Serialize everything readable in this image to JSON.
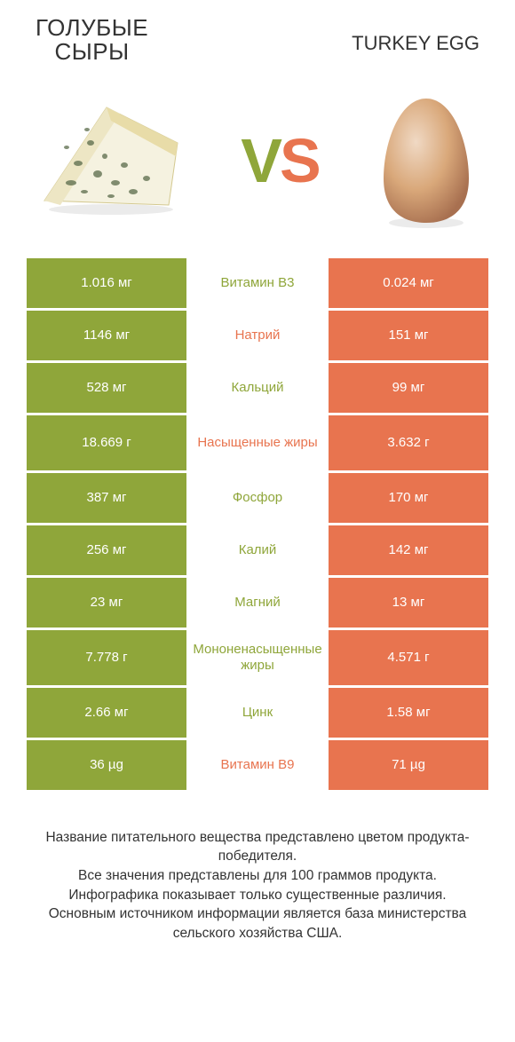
{
  "header": {
    "left_line1": "ГОЛУБЫЕ",
    "left_line2": "СЫРЫ",
    "right": "TURKEY EGG"
  },
  "vs": {
    "v": "V",
    "s": "S"
  },
  "colors": {
    "green": "#8fa63a",
    "orange": "#e8744f",
    "cheese_rind": "#e8dca8",
    "cheese_body": "#f5f2e0",
    "cheese_vein": "#5a6b4a",
    "egg_base": "#d9a87a",
    "egg_highlight": "#f0d9c4",
    "egg_shadow": "#a87050"
  },
  "rows": [
    {
      "left": "1.016 мг",
      "mid": "Витамин B3",
      "right": "0.024 мг",
      "winner": "left"
    },
    {
      "left": "1146 мг",
      "mid": "Натрий",
      "right": "151 мг",
      "winner": "right"
    },
    {
      "left": "528 мг",
      "mid": "Кальций",
      "right": "99 мг",
      "winner": "left"
    },
    {
      "left": "18.669 г",
      "mid": "Насыщенные жиры",
      "right": "3.632 г",
      "winner": "right",
      "tall": true
    },
    {
      "left": "387 мг",
      "mid": "Фосфор",
      "right": "170 мг",
      "winner": "left"
    },
    {
      "left": "256 мг",
      "mid": "Калий",
      "right": "142 мг",
      "winner": "left"
    },
    {
      "left": "23 мг",
      "mid": "Магний",
      "right": "13 мг",
      "winner": "left"
    },
    {
      "left": "7.778 г",
      "mid": "Мононенасыщенные жиры",
      "right": "4.571 г",
      "winner": "left",
      "tall": true
    },
    {
      "left": "2.66 мг",
      "mid": "Цинк",
      "right": "1.58 мг",
      "winner": "left"
    },
    {
      "left": "36 µg",
      "mid": "Витамин B9",
      "right": "71 µg",
      "winner": "right"
    }
  ],
  "footer": {
    "l1": "Название питательного вещества представлено цветом продукта-победителя.",
    "l2": "Все значения представлены для 100 граммов продукта.",
    "l3": "Инфографика показывает только существенные различия.",
    "l4": "Основным источником информации является база министерства сельского хозяйства США."
  }
}
